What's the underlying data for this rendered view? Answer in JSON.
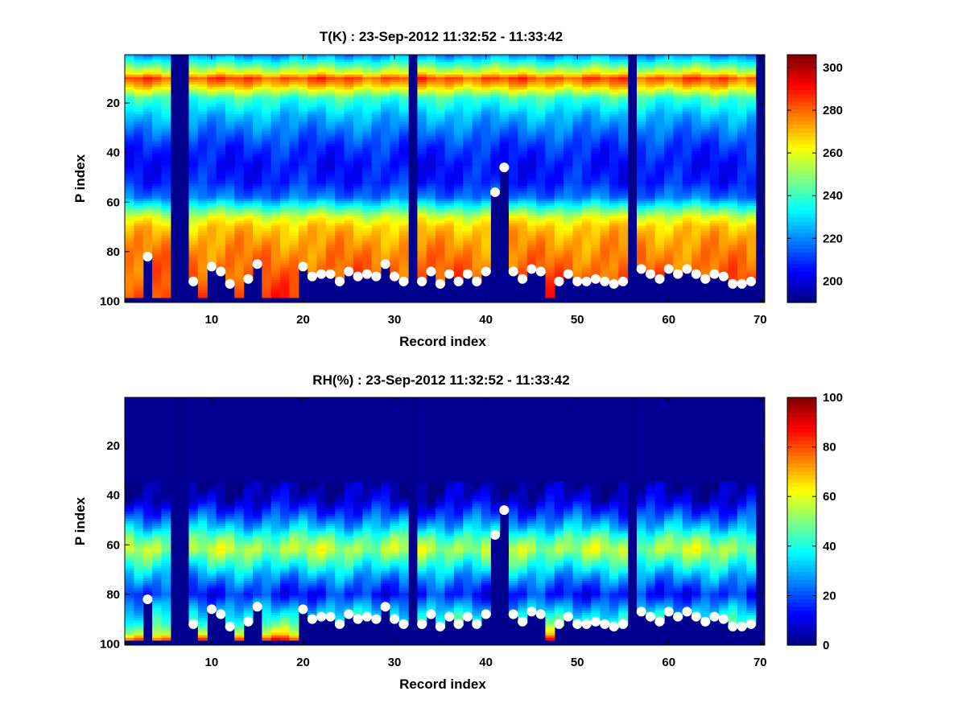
{
  "figure": {
    "background": "#ffffff",
    "colormap": "jet",
    "marker_color": "#ffffff",
    "mask_color": "#00008f"
  },
  "chart_data": [
    {
      "type": "heatmap",
      "title": "T(K) : 23-Sep-2012 11:32:52 - 11:33:42",
      "xlabel": "Record index",
      "ylabel": "P index",
      "xlim": [
        0.5,
        70.5
      ],
      "ylim": [
        0.5,
        100.5
      ],
      "y_reversed": true,
      "xticks": [
        10,
        20,
        30,
        40,
        50,
        60,
        70
      ],
      "yticks": [
        20,
        40,
        60,
        80,
        100
      ],
      "colorbar": {
        "min": 190,
        "max": 306,
        "ticks": [
          200,
          220,
          240,
          260,
          280,
          300
        ]
      },
      "masked_columns": [
        6,
        7,
        32,
        56,
        70
      ],
      "surface_index": [
        98,
        98,
        82,
        98,
        98,
        0,
        0,
        92,
        98,
        86,
        88,
        93,
        98,
        91,
        85,
        98,
        98,
        98,
        98,
        86,
        90,
        89,
        89,
        92,
        88,
        90,
        89,
        90,
        85,
        90,
        92,
        0,
        92,
        88,
        93,
        89,
        92,
        89,
        92,
        88,
        56,
        46,
        88,
        91,
        87,
        88,
        98,
        92,
        89,
        92,
        92,
        91,
        92,
        93,
        92,
        0,
        87,
        89,
        91,
        87,
        89,
        87,
        89,
        91,
        89,
        90,
        93,
        93,
        92,
        0
      ],
      "profile": {
        "levels": [
          1,
          8,
          10,
          13,
          18,
          25,
          32,
          38,
          45,
          52,
          58,
          62,
          66,
          70,
          74,
          80,
          86,
          92,
          98
        ],
        "values": [
          222,
          262,
          283,
          270,
          240,
          226,
          217,
          210,
          206,
          208,
          218,
          238,
          258,
          268,
          272,
          276,
          279,
          282,
          285
        ]
      },
      "markers": {
        "x": [
          3,
          8,
          10,
          11,
          12,
          14,
          15,
          20,
          21,
          22,
          23,
          24,
          25,
          26,
          27,
          28,
          29,
          30,
          31,
          33,
          34,
          35,
          36,
          37,
          38,
          39,
          40,
          41,
          42,
          43,
          44,
          45,
          46,
          48,
          49,
          50,
          51,
          52,
          53,
          54,
          55,
          57,
          58,
          59,
          60,
          61,
          62,
          63,
          64,
          65,
          66,
          67,
          68,
          69
        ],
        "y": [
          82,
          92,
          86,
          88,
          93,
          91,
          85,
          86,
          90,
          89,
          89,
          92,
          88,
          90,
          89,
          90,
          85,
          90,
          92,
          92,
          88,
          93,
          89,
          92,
          89,
          92,
          88,
          56,
          46,
          88,
          91,
          87,
          88,
          92,
          89,
          92,
          92,
          91,
          92,
          93,
          92,
          87,
          89,
          91,
          87,
          89,
          87,
          89,
          91,
          89,
          90,
          93,
          93,
          92
        ]
      }
    },
    {
      "type": "heatmap",
      "title": "RH(%) : 23-Sep-2012 11:32:52 - 11:33:42",
      "xlabel": "Record index",
      "ylabel": "P index",
      "xlim": [
        0.5,
        70.5
      ],
      "ylim": [
        0.5,
        100.5
      ],
      "y_reversed": true,
      "xticks": [
        10,
        20,
        30,
        40,
        50,
        60,
        70
      ],
      "yticks": [
        20,
        40,
        60,
        80,
        100
      ],
      "colorbar": {
        "min": 0,
        "max": 100,
        "ticks": [
          0,
          20,
          40,
          60,
          80,
          100
        ]
      },
      "masked_columns": [
        6,
        7,
        32,
        56,
        70
      ],
      "surface_index": [
        98,
        98,
        82,
        98,
        98,
        0,
        0,
        92,
        98,
        86,
        88,
        93,
        98,
        91,
        85,
        98,
        98,
        98,
        98,
        86,
        90,
        89,
        89,
        92,
        88,
        90,
        89,
        90,
        85,
        90,
        92,
        0,
        92,
        88,
        93,
        89,
        92,
        89,
        92,
        88,
        56,
        46,
        88,
        91,
        87,
        88,
        98,
        92,
        89,
        92,
        92,
        91,
        92,
        93,
        92,
        0,
        87,
        89,
        91,
        87,
        89,
        87,
        89,
        91,
        89,
        90,
        93,
        93,
        92,
        0
      ],
      "profile": {
        "levels": [
          1,
          35,
          42,
          48,
          53,
          57,
          60,
          62,
          64,
          68,
          72,
          76,
          80,
          84,
          88,
          92,
          96,
          98
        ],
        "values": [
          2,
          2,
          8,
          20,
          32,
          45,
          52,
          55,
          50,
          40,
          30,
          22,
          15,
          25,
          35,
          45,
          60,
          80
        ]
      },
      "markers": {
        "x": [
          3,
          8,
          10,
          11,
          12,
          14,
          15,
          20,
          21,
          22,
          23,
          24,
          25,
          26,
          27,
          28,
          29,
          30,
          31,
          33,
          34,
          35,
          36,
          37,
          38,
          39,
          40,
          41,
          42,
          43,
          44,
          45,
          46,
          48,
          49,
          50,
          51,
          52,
          53,
          54,
          55,
          57,
          58,
          59,
          60,
          61,
          62,
          63,
          64,
          65,
          66,
          67,
          68,
          69
        ],
        "y": [
          82,
          92,
          86,
          88,
          93,
          91,
          85,
          86,
          90,
          89,
          89,
          92,
          88,
          90,
          89,
          90,
          85,
          90,
          92,
          92,
          88,
          93,
          89,
          92,
          89,
          92,
          88,
          56,
          46,
          88,
          91,
          87,
          88,
          92,
          89,
          92,
          92,
          91,
          92,
          93,
          92,
          87,
          89,
          91,
          87,
          89,
          87,
          89,
          91,
          89,
          90,
          93,
          93,
          92
        ]
      }
    }
  ]
}
